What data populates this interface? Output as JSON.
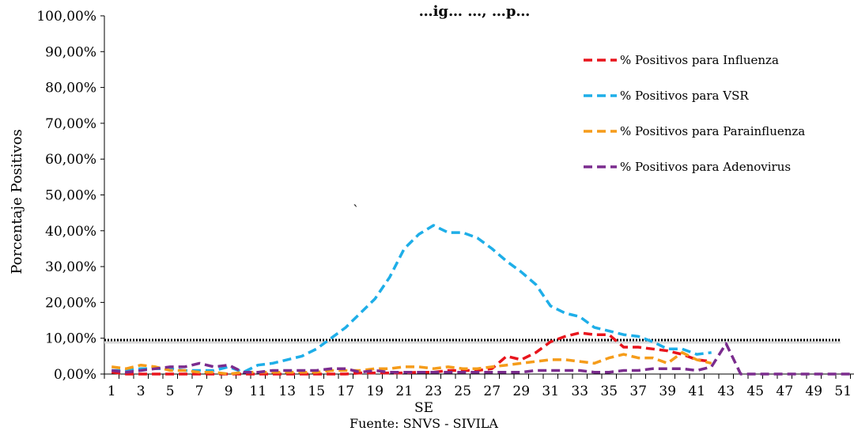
{
  "chart_data": {
    "type": "line",
    "title": "…ig… …, …p…",
    "xlabel": "SE",
    "ylabel": "Porcentaje Positivos",
    "source": "Fuente: SNVS  - SIVILA",
    "stray_mark": "`",
    "x_tick_labels": [
      "1",
      "3",
      "5",
      "7",
      "9",
      "11",
      "13",
      "15",
      "17",
      "19",
      "21",
      "23",
      "25",
      "27",
      "29",
      "31",
      "33",
      "35",
      "37",
      "39",
      "41",
      "43",
      "45",
      "47",
      "49",
      "51"
    ],
    "y_tick_labels": [
      "0,00%",
      "10,00%",
      "20,00%",
      "30,00%",
      "40,00%",
      "50,00%",
      "60,00%",
      "70,00%",
      "80,00%",
      "90,00%",
      "100,00%"
    ],
    "xlim": [
      1,
      52
    ],
    "ylim": [
      0,
      100
    ],
    "threshold": 9.5,
    "legend_position": "top-right",
    "grid": false,
    "x": [
      1,
      2,
      3,
      4,
      5,
      6,
      7,
      8,
      9,
      10,
      11,
      12,
      13,
      14,
      15,
      16,
      17,
      18,
      19,
      20,
      21,
      22,
      23,
      24,
      25,
      26,
      27,
      28,
      29,
      30,
      31,
      32,
      33,
      34,
      35,
      36,
      37,
      38,
      39,
      40,
      41,
      42,
      43,
      44,
      45,
      46,
      47,
      48,
      49,
      50,
      51,
      52
    ],
    "series": [
      {
        "name": "% Positivos para Influenza",
        "color": "#e8141c",
        "values": [
          0.5,
          0,
          0,
          0,
          0,
          0,
          0,
          0,
          0,
          0,
          0,
          0,
          0,
          0,
          0,
          0,
          0,
          0.3,
          0.3,
          0.3,
          0.3,
          0.5,
          0.5,
          1,
          1,
          1,
          1.5,
          5,
          4,
          6,
          9,
          10.5,
          11.5,
          11,
          11,
          7.5,
          7.5,
          7,
          6.5,
          5.5,
          4,
          3.5,
          null,
          null,
          null,
          null,
          null,
          null,
          null,
          null,
          null,
          null
        ]
      },
      {
        "name": "% Positivos para VSR",
        "color": "#1eaee8",
        "values": [
          1,
          1,
          1.5,
          1.5,
          1.5,
          1,
          1,
          1,
          2,
          0.5,
          2.5,
          3,
          4,
          5,
          7,
          10,
          13,
          17,
          21,
          27,
          35,
          39,
          41.5,
          39.5,
          39.5,
          38,
          35,
          31.5,
          28.5,
          25,
          19,
          17,
          16,
          13,
          12,
          11,
          10.5,
          9,
          7,
          7,
          5.5,
          6,
          null,
          null,
          null,
          null,
          null,
          null,
          null,
          null,
          null,
          null
        ]
      },
      {
        "name": "% Positivos para Parainfluenza",
        "color": "#f59c1a",
        "values": [
          2,
          1.5,
          2.5,
          2,
          1,
          1,
          0.5,
          0.5,
          0,
          0.5,
          0.5,
          0.5,
          0.5,
          0.5,
          0.5,
          1,
          1,
          1,
          1.5,
          1.5,
          2,
          2,
          1.5,
          2,
          1.5,
          1.5,
          2,
          2.5,
          3,
          3.5,
          4,
          4,
          3.5,
          3,
          4.5,
          5.5,
          4.5,
          4.5,
          3,
          6,
          4,
          3,
          null,
          null,
          null,
          null,
          null,
          null,
          null,
          null,
          null,
          null
        ]
      },
      {
        "name": "% Positivos para Adenovirus",
        "color": "#7b2c8e",
        "values": [
          1,
          0.5,
          1,
          1.5,
          2,
          2,
          3,
          2,
          2.5,
          0.5,
          0.5,
          1,
          1,
          1,
          1,
          1.5,
          1.5,
          0.5,
          1,
          0.5,
          0.5,
          0.5,
          0.5,
          0.5,
          0.5,
          0.5,
          0.5,
          0.5,
          0.5,
          1,
          1,
          1,
          1,
          0.5,
          0.5,
          1,
          1,
          1.5,
          1.5,
          1.5,
          1,
          2,
          8.5,
          0,
          0,
          0,
          0,
          0,
          0,
          0,
          0,
          0
        ]
      }
    ]
  }
}
